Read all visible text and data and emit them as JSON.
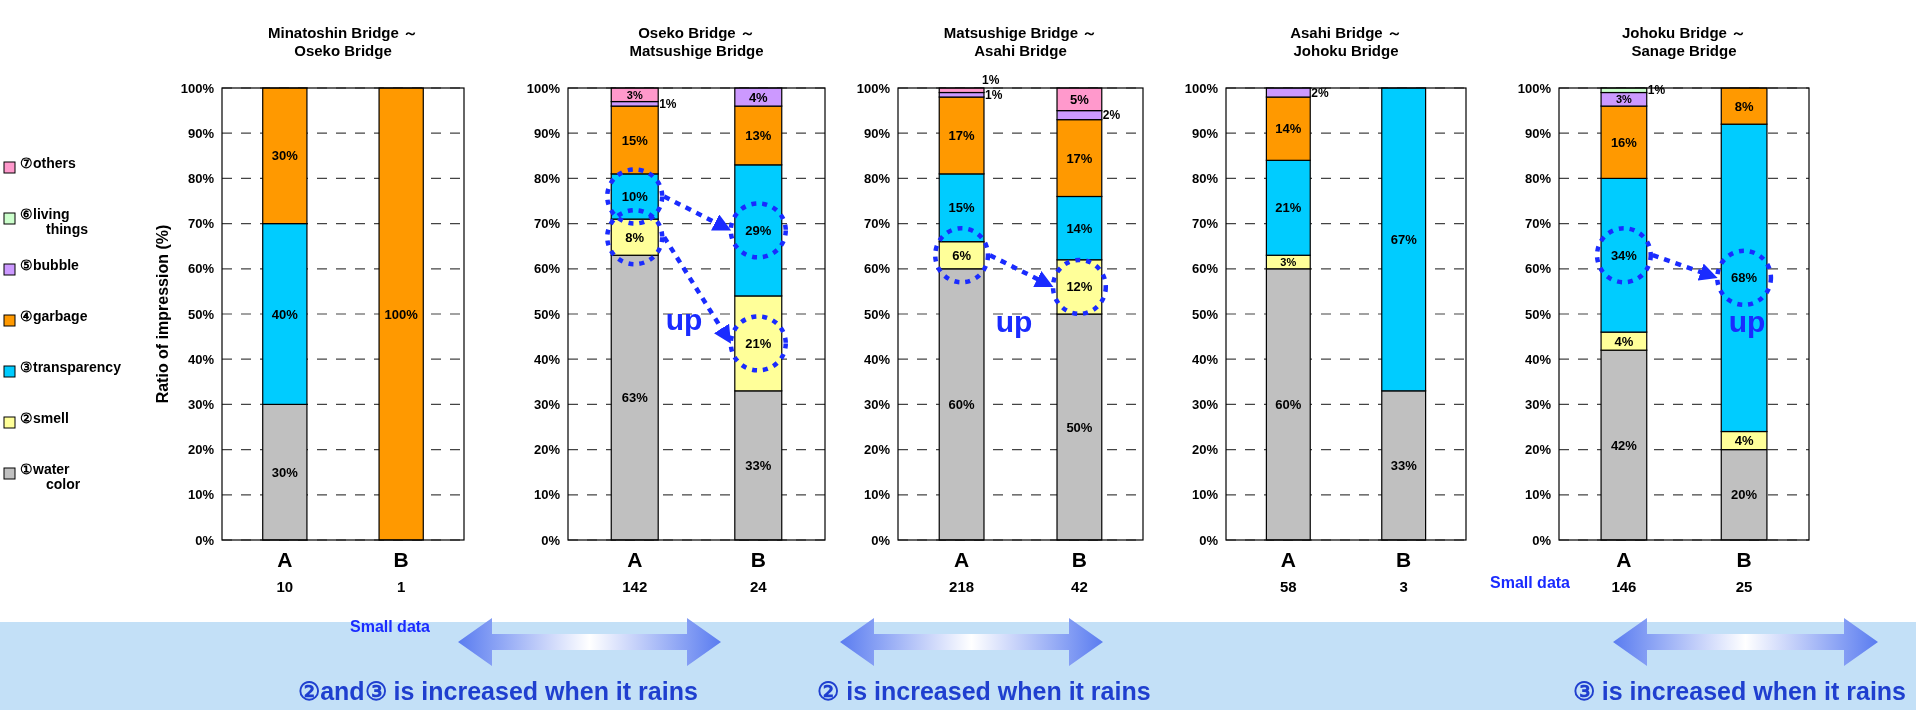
{
  "chart_data": [
    {
      "type": "bar",
      "stacked": true,
      "title": "Minatoshin Bridge ～ Oseko Bridge",
      "ylabel": "Ratio of impression (%)",
      "categories": [
        "A",
        "B"
      ],
      "ylim": [
        0,
        100
      ],
      "yticks": [
        {
          "value": 0,
          "label": "0%"
        },
        {
          "value": 10,
          "label": "10%"
        },
        {
          "value": 20,
          "label": "20%"
        },
        {
          "value": 30,
          "label": "30%"
        },
        {
          "value": 40,
          "label": "40%"
        },
        {
          "value": 50,
          "label": "50%"
        },
        {
          "value": 60,
          "label": "60%"
        },
        {
          "value": 70,
          "label": "70%"
        },
        {
          "value": 80,
          "label": "80%"
        },
        {
          "value": 90,
          "label": "90%"
        },
        {
          "value": 100,
          "label": "100%"
        }
      ],
      "grid": "y",
      "legend": "left",
      "series": [
        {
          "name": "①water color",
          "color": "#c0c0c0",
          "values": [
            30,
            0
          ],
          "value_labels": [
            "30%",
            null
          ]
        },
        {
          "name": "②smell",
          "color": "#ffff99",
          "values": [
            0,
            0
          ],
          "value_labels": [
            null,
            null
          ]
        },
        {
          "name": "③transparency",
          "color": "#00ccff",
          "values": [
            40,
            0
          ],
          "value_labels": [
            "40%",
            null
          ]
        },
        {
          "name": "④garbage",
          "color": "#ff9900",
          "values": [
            30,
            100
          ],
          "value_labels": [
            "30%",
            "100%"
          ]
        },
        {
          "name": "⑤bubble",
          "color": "#cc99ff",
          "values": [
            0,
            0
          ],
          "value_labels": [
            null,
            null
          ]
        },
        {
          "name": "⑥living things",
          "color": "#ccffcc",
          "values": [
            0,
            0
          ],
          "value_labels": [
            null,
            null
          ]
        },
        {
          "name": "⑦others",
          "color": "#ff99cc",
          "values": [
            0,
            0
          ],
          "value_labels": [
            null,
            null
          ]
        }
      ],
      "annotations": [
        "10",
        "1",
        "Small data"
      ]
    },
    {
      "type": "bar",
      "stacked": true,
      "title": "Oseko Bridge ～ Matsushige Bridge",
      "categories": [
        "A",
        "B"
      ],
      "ylim": [
        0,
        100
      ],
      "yticks": [
        {
          "value": 0,
          "label": "0%"
        },
        {
          "value": 10,
          "label": "10%"
        },
        {
          "value": 20,
          "label": "20%"
        },
        {
          "value": 30,
          "label": "30%"
        },
        {
          "value": 40,
          "label": "40%"
        },
        {
          "value": 50,
          "label": "50%"
        },
        {
          "value": 60,
          "label": "60%"
        },
        {
          "value": 70,
          "label": "70%"
        },
        {
          "value": 80,
          "label": "80%"
        },
        {
          "value": 90,
          "label": "90%"
        },
        {
          "value": 100,
          "label": "100%"
        }
      ],
      "grid": "y",
      "series": [
        {
          "color": "#c0c0c0",
          "values": [
            63,
            33
          ],
          "value_labels": [
            "63%",
            "33%"
          ]
        },
        {
          "color": "#ffff99",
          "values": [
            8,
            21
          ],
          "value_labels": [
            "8%",
            "21%"
          ]
        },
        {
          "color": "#00ccff",
          "values": [
            10,
            29
          ],
          "value_labels": [
            "10%",
            "29%"
          ]
        },
        {
          "color": "#ff9900",
          "values": [
            15,
            13
          ],
          "value_labels": [
            "15%",
            "13%"
          ]
        },
        {
          "color": "#cc99ff",
          "values": [
            1,
            4
          ],
          "value_labels": [
            "1%",
            "4%"
          ]
        },
        {
          "color": "#ff99cc",
          "values": [
            3,
            0
          ],
          "value_labels": [
            "3%",
            null
          ]
        }
      ],
      "annotations": [
        "142",
        "24",
        "up",
        "②and③ is increased when it rains"
      ]
    },
    {
      "type": "bar",
      "stacked": true,
      "title": "Matsushige Bridge ～ Asahi Bridge",
      "categories": [
        "A",
        "B"
      ],
      "ylim": [
        0,
        100
      ],
      "yticks": [
        {
          "value": 0,
          "label": "0%"
        },
        {
          "value": 10,
          "label": "10%"
        },
        {
          "value": 20,
          "label": "20%"
        },
        {
          "value": 30,
          "label": "30%"
        },
        {
          "value": 40,
          "label": "40%"
        },
        {
          "value": 50,
          "label": "50%"
        },
        {
          "value": 60,
          "label": "60%"
        },
        {
          "value": 70,
          "label": "70%"
        },
        {
          "value": 80,
          "label": "80%"
        },
        {
          "value": 90,
          "label": "90%"
        },
        {
          "value": 100,
          "label": "100%"
        }
      ],
      "grid": "y",
      "series": [
        {
          "color": "#c0c0c0",
          "values": [
            60,
            50
          ],
          "value_labels": [
            "60%",
            "50%"
          ]
        },
        {
          "color": "#ffff99",
          "values": [
            6,
            12
          ],
          "value_labels": [
            "6%",
            "12%"
          ]
        },
        {
          "color": "#00ccff",
          "values": [
            15,
            14
          ],
          "value_labels": [
            "15%",
            "14%"
          ]
        },
        {
          "color": "#ff9900",
          "values": [
            17,
            17
          ],
          "value_labels": [
            "17%",
            "17%"
          ]
        },
        {
          "color": "#cc99ff",
          "values": [
            1,
            2
          ],
          "value_labels": [
            "1%",
            "2%"
          ]
        },
        {
          "color": "#ff99cc",
          "values": [
            1,
            5
          ],
          "value_labels": [
            "1%",
            "5%"
          ]
        }
      ],
      "annotations": [
        "218",
        "42",
        "up",
        "② is increased when it rains"
      ]
    },
    {
      "type": "bar",
      "stacked": true,
      "title": "Asahi Bridge ～ Johoku Bridge",
      "categories": [
        "A",
        "B"
      ],
      "ylim": [
        0,
        100
      ],
      "yticks": [
        {
          "value": 0,
          "label": "0%"
        },
        {
          "value": 10,
          "label": "10%"
        },
        {
          "value": 20,
          "label": "20%"
        },
        {
          "value": 30,
          "label": "30%"
        },
        {
          "value": 40,
          "label": "40%"
        },
        {
          "value": 50,
          "label": "50%"
        },
        {
          "value": 60,
          "label": "60%"
        },
        {
          "value": 70,
          "label": "70%"
        },
        {
          "value": 80,
          "label": "80%"
        },
        {
          "value": 90,
          "label": "90%"
        },
        {
          "value": 100,
          "label": "100%"
        }
      ],
      "grid": "y",
      "series": [
        {
          "color": "#c0c0c0",
          "values": [
            60,
            33
          ],
          "value_labels": [
            "60%",
            "33%"
          ]
        },
        {
          "color": "#ffff99",
          "values": [
            3,
            0
          ],
          "value_labels": [
            "3%",
            null
          ]
        },
        {
          "color": "#00ccff",
          "values": [
            21,
            67
          ],
          "value_labels": [
            "21%",
            "67%"
          ]
        },
        {
          "color": "#ff9900",
          "values": [
            14,
            0
          ],
          "value_labels": [
            "14%",
            null
          ]
        },
        {
          "color": "#cc99ff",
          "values": [
            2,
            0
          ],
          "value_labels": [
            "2%",
            null
          ]
        }
      ],
      "annotations": [
        "58",
        "3",
        "Small data"
      ]
    },
    {
      "type": "bar",
      "stacked": true,
      "title": "Johoku Bridge ～ Sanage Bridge",
      "categories": [
        "A",
        "B"
      ],
      "ylim": [
        0,
        100
      ],
      "yticks": [
        {
          "value": 0,
          "label": "0%"
        },
        {
          "value": 10,
          "label": "10%"
        },
        {
          "value": 20,
          "label": "20%"
        },
        {
          "value": 30,
          "label": "30%"
        },
        {
          "value": 40,
          "label": "40%"
        },
        {
          "value": 50,
          "label": "50%"
        },
        {
          "value": 60,
          "label": "60%"
        },
        {
          "value": 70,
          "label": "70%"
        },
        {
          "value": 80,
          "label": "80%"
        },
        {
          "value": 90,
          "label": "90%"
        },
        {
          "value": 100,
          "label": "100%"
        }
      ],
      "grid": "y",
      "series": [
        {
          "color": "#c0c0c0",
          "values": [
            42,
            20
          ],
          "value_labels": [
            "42%",
            "20%"
          ]
        },
        {
          "color": "#ffff99",
          "values": [
            4,
            4
          ],
          "value_labels": [
            "4%",
            "4%"
          ]
        },
        {
          "color": "#00ccff",
          "values": [
            34,
            68
          ],
          "value_labels": [
            "34%",
            "68%"
          ]
        },
        {
          "color": "#ff9900",
          "values": [
            16,
            8
          ],
          "value_labels": [
            "16%",
            "8%"
          ]
        },
        {
          "color": "#cc99ff",
          "values": [
            3,
            0
          ],
          "value_labels": [
            "3%",
            null
          ]
        },
        {
          "color": "#ccffcc",
          "values": [
            1,
            0
          ],
          "value_labels": [
            "1%",
            null
          ]
        }
      ],
      "annotations": [
        "146",
        "25",
        "up",
        "③ is increased when it rains"
      ]
    }
  ]
}
